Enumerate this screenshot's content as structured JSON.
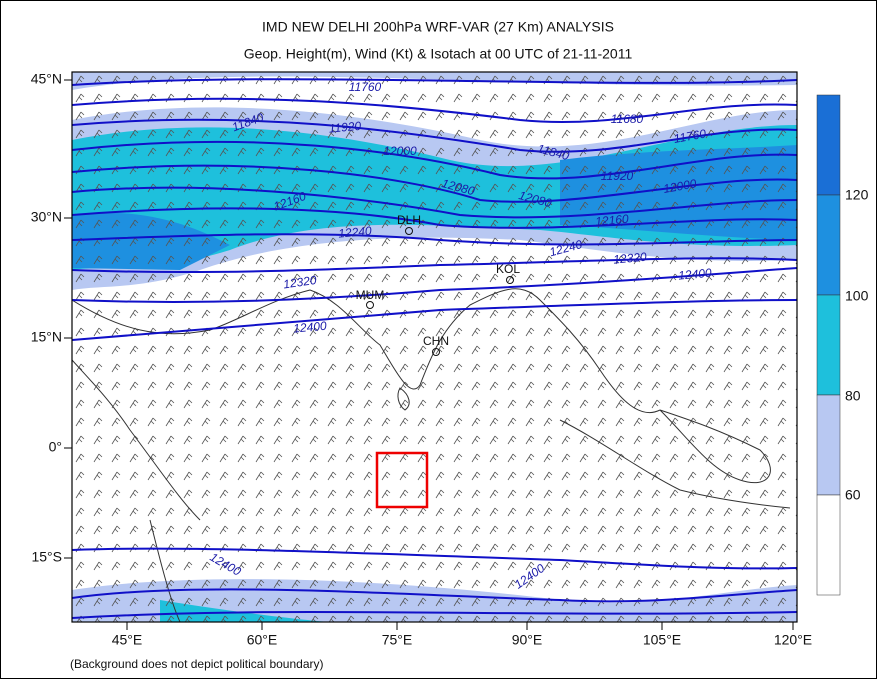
{
  "header": {
    "title": "IMD NEW DELHI 200hPa WRF-VAR (27 Km) ANALYSIS",
    "subtitle": "Geop. Height(m), Wind (Kt) & Isotach  at 00 UTC of 21-11-2011"
  },
  "map": {
    "lat_labels": [
      "45°N",
      "30°N",
      "15°N",
      "0°",
      "15°S"
    ],
    "lon_labels": [
      "45°E",
      "60°E",
      "75°E",
      "90°E",
      "105°E",
      "120°E"
    ],
    "contour_labels": [
      "11760",
      "11840",
      "11920",
      "12000",
      "12080",
      "12160",
      "12240",
      "12320",
      "12400",
      "11680",
      "11760",
      "11840",
      "11920",
      "12000",
      "12080",
      "12160",
      "12240",
      "12320",
      "12400",
      "12400",
      "12400"
    ],
    "cities": [
      "DLH",
      "KOL",
      "MUM",
      "CHN"
    ]
  },
  "colorbar": {
    "labels": [
      "120",
      "100",
      "80",
      "60"
    ]
  },
  "footnote": "(Background does not depict political boundary)"
}
